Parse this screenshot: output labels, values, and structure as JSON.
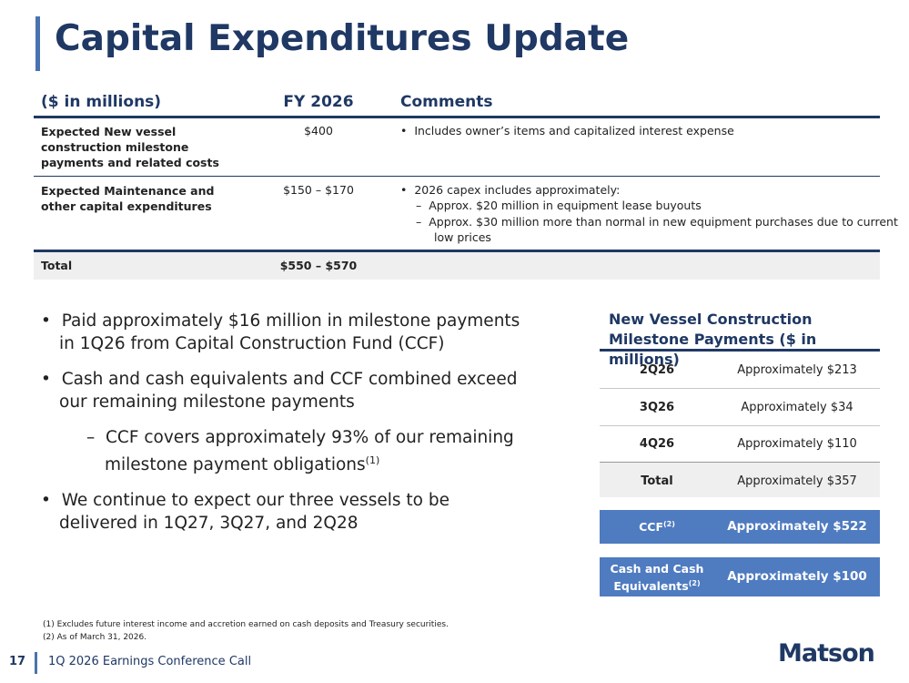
{
  "title": "Capital Expenditures Update",
  "capex_table": {
    "header": [
      "($ in millions)",
      "FY 2026",
      "Comments"
    ],
    "rows": [
      {
        "label": "Expected New vessel construction milestone payments and related costs",
        "amount": "$400",
        "comments": [
          "Includes owner’s items and capitalized interest expense"
        ],
        "sub_comments": []
      },
      {
        "label": "Expected Maintenance and other capital expenditures",
        "amount": "$150 – $170",
        "comments": [
          "2026 capex includes approximately:"
        ],
        "sub_comments": [
          "Approx. $20 million in equipment lease buyouts",
          "Approx. $30 million more than normal in new equipment purchases due to current low prices"
        ]
      }
    ],
    "total": {
      "label": "Total",
      "amount": "$550 – $570"
    }
  },
  "bullets": [
    {
      "text": "Paid approximately $16 million in milestone payments in 1Q26 from Capital Construction Fund (CCF)"
    },
    {
      "text": "Cash and cash equivalents and CCF combined exceed our remaining milestone payments"
    },
    {
      "text": "CCF covers approximately 93% of our remaining milestone payment obligations",
      "note": "(1)",
      "level": 2
    },
    {
      "text": "We continue to expect our three vessels to be delivered in 1Q27, 3Q27, and 2Q28"
    }
  ],
  "milestone_table": {
    "title": "New Vessel Construction Milestone Payments ($ in millions)",
    "rows": [
      [
        "2Q26",
        "Approximately $213"
      ],
      [
        "3Q26",
        "Approximately $34"
      ],
      [
        "4Q26",
        "Approximately $110"
      ],
      [
        "Total",
        "Approximately $357"
      ]
    ],
    "highlights": [
      {
        "label": "CCF",
        "note": "(2)",
        "value": "Approximately $522"
      },
      {
        "label": "Cash and Cash Equivalents",
        "note": "(2)",
        "value": "Approximately $100"
      }
    ]
  },
  "footnotes": [
    "(1)  Excludes future interest income and accretion earned on cash deposits and Treasury securities.",
    "(2)  As of March 31, 2026."
  ],
  "footer": {
    "page": "17",
    "text": "1Q 2026 Earnings Conference Call",
    "logo": "Matson"
  }
}
